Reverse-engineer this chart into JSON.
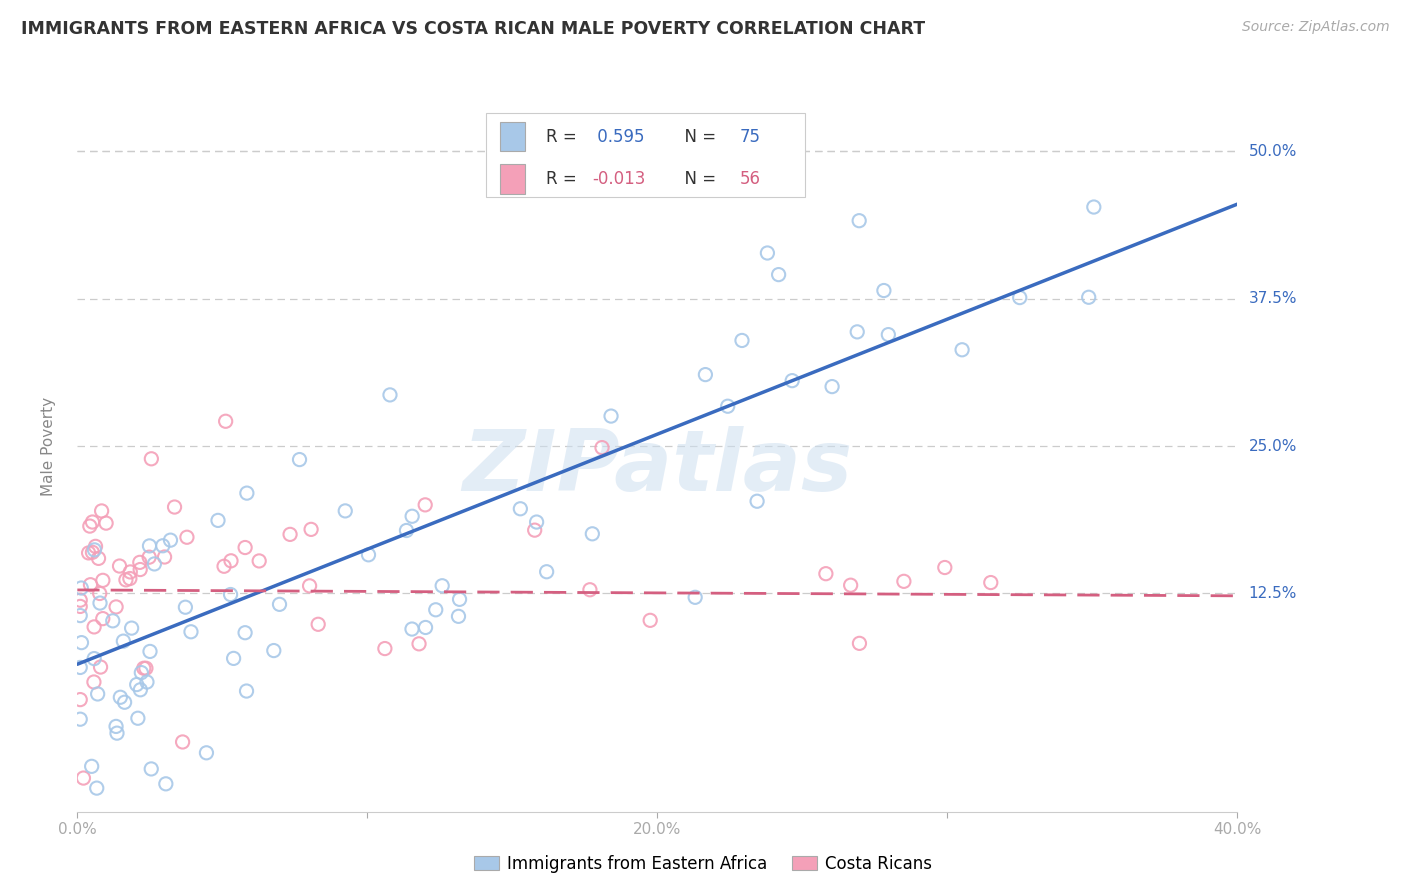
{
  "title": "IMMIGRANTS FROM EASTERN AFRICA VS COSTA RICAN MALE POVERTY CORRELATION CHART",
  "source": "Source: ZipAtlas.com",
  "ylabel": "Male Poverty",
  "x_min": 0.0,
  "x_max": 0.4,
  "y_min": -0.06,
  "y_max": 0.56,
  "yticks": [
    0.0,
    0.125,
    0.25,
    0.375,
    0.5
  ],
  "ytick_labels": [
    "",
    "12.5%",
    "25.0%",
    "37.5%",
    "50.0%"
  ],
  "xticks": [
    0.0,
    0.1,
    0.2,
    0.3,
    0.4
  ],
  "xtick_labels": [
    "0.0%",
    "",
    "20.0%",
    "",
    "40.0%"
  ],
  "grid_color": "#cccccc",
  "background_color": "#ffffff",
  "blue_dot_color": "#a8c8e8",
  "pink_dot_color": "#f4a0b8",
  "blue_line_color": "#3a6bbf",
  "pink_line_color": "#d45f80",
  "legend_text_dark": "#333333",
  "legend_val_blue": "#3a6bbf",
  "legend_val_pink": "#d45f80",
  "legend_label_blue": "Immigrants from Eastern Africa",
  "legend_label_pink": "Costa Ricans",
  "watermark": "ZIPatlas",
  "blue_trend_x0": 0.0,
  "blue_trend_y0": 0.065,
  "blue_trend_x1": 0.4,
  "blue_trend_y1": 0.455,
  "pink_trend_x0": 0.0,
  "pink_trend_y0": 0.128,
  "pink_trend_x1": 0.4,
  "pink_trend_y1": 0.123
}
